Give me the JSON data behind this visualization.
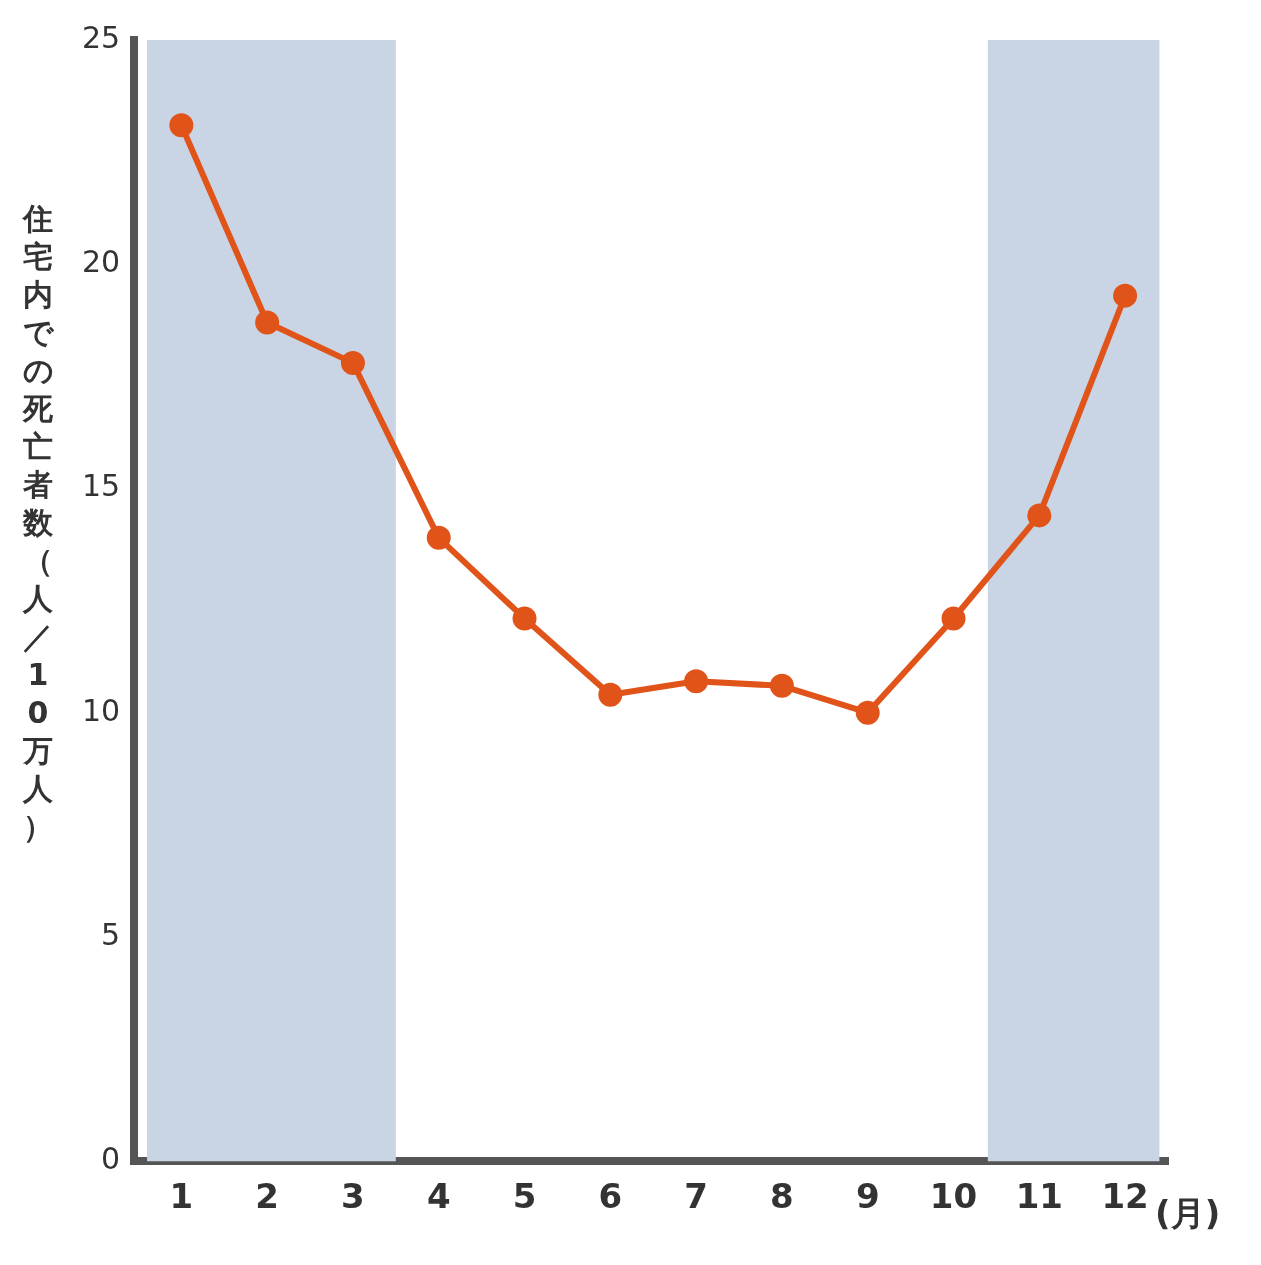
{
  "chart_data": {
    "type": "line",
    "ylabel": "住宅内での死亡者数（人／10万人）",
    "xlabel": "(月)",
    "x": [
      1,
      2,
      3,
      4,
      5,
      6,
      7,
      8,
      9,
      10,
      11,
      12
    ],
    "series": [
      {
        "color": "#e0541a",
        "values": [
          23.1,
          18.7,
          17.8,
          13.9,
          12.1,
          10.4,
          10.7,
          10.6,
          10.0,
          12.1,
          14.4,
          19.3
        ]
      }
    ],
    "xlim": [
      0.45,
      12.5
    ],
    "xticks": [
      1,
      2,
      3,
      4,
      5,
      6,
      7,
      8,
      9,
      10,
      11,
      12
    ],
    "ylim": [
      0,
      25
    ],
    "yticks": [
      0,
      5,
      10,
      15,
      20,
      25
    ],
    "bands": [
      {
        "axis": "x",
        "from": 0.6,
        "to": 3.5,
        "color": "#c9d4e4"
      },
      {
        "axis": "x",
        "from": 10.4,
        "to": 12.4,
        "color": "#c9d4e4"
      }
    ],
    "marker": "circle",
    "line_style": "solid",
    "grid": false,
    "legend": false
  }
}
